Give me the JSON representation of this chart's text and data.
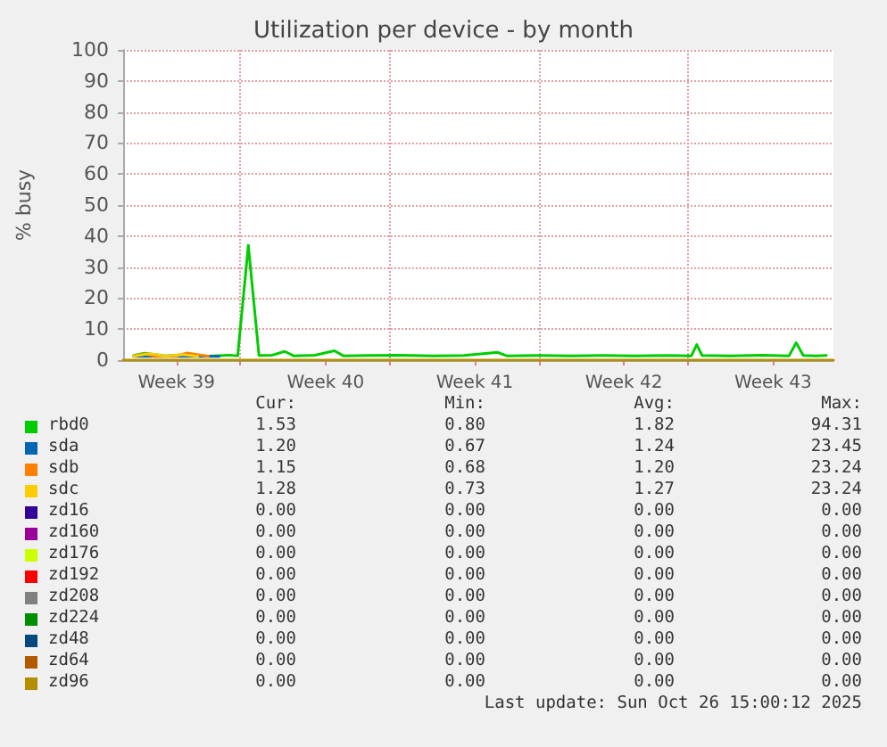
{
  "chart_data": {
    "type": "line",
    "title": "Utilization per device - by month",
    "ylabel": "% busy",
    "xlim": [
      "2025-09-23T12:00",
      "2025-10-26T20:00"
    ],
    "xticks": [
      {
        "value": "2025-09-26T00:00",
        "label": "Week 39"
      },
      {
        "value": "2025-09-29T00:00",
        "label": null
      },
      {
        "value": "2025-10-03T00:00",
        "label": "Week 40"
      },
      {
        "value": "2025-10-06T00:00",
        "label": null
      },
      {
        "value": "2025-10-10T00:00",
        "label": "Week 41"
      },
      {
        "value": "2025-10-13T00:00",
        "label": null
      },
      {
        "value": "2025-10-17T00:00",
        "label": "Week 42"
      },
      {
        "value": "2025-10-20T00:00",
        "label": null
      },
      {
        "value": "2025-10-24T00:00",
        "label": "Week 43"
      }
    ],
    "ylim": [
      0,
      100
    ],
    "yticks": [
      0,
      10,
      20,
      30,
      40,
      50,
      60,
      70,
      80,
      90,
      100
    ],
    "grid": true,
    "legend": "bottom",
    "marker": "none",
    "line_style": "solid",
    "series": [
      {
        "name": "rbd0",
        "color": "#00cc00",
        "x": [
          "2025-09-24T00:00",
          "2025-09-24T12:00",
          "2025-09-25T12:00",
          "2025-09-26T12:00",
          "2025-09-27T12:00",
          "2025-09-28T12:00",
          "2025-09-28T21:00",
          "2025-09-29T09:00",
          "2025-09-29T21:00",
          "2025-09-30T12:00",
          "2025-10-01T02:00",
          "2025-10-01T12:00",
          "2025-10-02T12:00",
          "2025-10-03T10:00",
          "2025-10-03T20:00",
          "2025-10-05T00:00",
          "2025-10-06T12:00",
          "2025-10-08T00:00",
          "2025-10-09T12:00",
          "2025-10-11T02:00",
          "2025-10-11T12:00",
          "2025-10-13T00:00",
          "2025-10-14T12:00",
          "2025-10-16T00:00",
          "2025-10-17T12:00",
          "2025-10-19T00:00",
          "2025-10-20T04:00",
          "2025-10-20T10:00",
          "2025-10-20T16:00",
          "2025-10-22T00:00",
          "2025-10-23T12:00",
          "2025-10-24T18:00",
          "2025-10-25T02:00",
          "2025-10-25T10:00",
          "2025-10-26T00:00",
          "2025-10-26T12:00"
        ],
        "values": [
          1.5,
          2.2,
          1.4,
          1.8,
          1.3,
          1.6,
          1.4,
          37,
          1.5,
          1.6,
          2.8,
          1.4,
          1.6,
          3,
          1.4,
          1.5,
          1.6,
          1.4,
          1.5,
          2.5,
          1.4,
          1.5,
          1.4,
          1.5,
          1.4,
          1.5,
          1.4,
          5,
          1.5,
          1.4,
          1.6,
          1.4,
          5.6,
          1.5,
          1.4,
          1.5
        ]
      },
      {
        "name": "sda",
        "color": "#0066b3",
        "x": [
          "2025-09-24T00:00",
          "2025-09-26T12:00",
          "2025-09-28T00:00"
        ],
        "values": [
          1.2,
          1.2,
          1.2
        ]
      },
      {
        "name": "sdb",
        "color": "#ff8000",
        "x": [
          "2025-09-24T00:00",
          "2025-09-24T12:00",
          "2025-09-25T00:00",
          "2025-09-26T00:00",
          "2025-09-26T12:00",
          "2025-09-27T12:00"
        ],
        "values": [
          1.3,
          2.0,
          1.2,
          1.3,
          2.3,
          1.2
        ]
      },
      {
        "name": "sdc",
        "color": "#ffcc00",
        "x": [
          "2025-09-24T00:00",
          "2025-09-24T18:00",
          "2025-09-25T12:00",
          "2025-09-26T06:00",
          "2025-09-27T00:00"
        ],
        "values": [
          1.3,
          2.1,
          1.2,
          1.8,
          1.2
        ]
      },
      {
        "name": "zd16",
        "color": "#330099"
      },
      {
        "name": "zd160",
        "color": "#990099"
      },
      {
        "name": "zd176",
        "color": "#ccff00"
      },
      {
        "name": "zd192",
        "color": "#ff0000"
      },
      {
        "name": "zd208",
        "color": "#808080"
      },
      {
        "name": "zd224",
        "color": "#008f00"
      },
      {
        "name": "zd48",
        "color": "#00487d"
      },
      {
        "name": "zd64",
        "color": "#b35a00"
      },
      {
        "name": "zd96",
        "color": "#b38f00",
        "x": [
          "2025-09-23T12:00",
          "2025-10-26T20:00"
        ],
        "values": [
          0,
          0
        ]
      }
    ],
    "annotations": [
      "Cur:",
      "Min:",
      "Avg:",
      "Max:",
      "1.53",
      "0.80",
      "1.82",
      "94.31",
      "1.20",
      "0.67",
      "1.24",
      "23.45",
      "1.15",
      "0.68",
      "1.20",
      "23.24",
      "1.28",
      "0.73",
      "1.27",
      "23.24",
      "0.00",
      "0.00",
      "0.00",
      "0.00",
      "0.00",
      "0.00",
      "0.00",
      "0.00",
      "0.00",
      "0.00",
      "0.00",
      "0.00",
      "0.00",
      "0.00",
      "0.00",
      "0.00",
      "0.00",
      "0.00",
      "0.00",
      "0.00",
      "0.00",
      "0.00",
      "0.00",
      "0.00",
      "0.00",
      "0.00",
      "0.00",
      "0.00",
      "0.00",
      "0.00",
      "0.00",
      "0.00",
      "0.00",
      "0.00",
      "0.00",
      "0.00",
      "Last update: Sun Oct 26 15:00:12 2025"
    ]
  }
}
